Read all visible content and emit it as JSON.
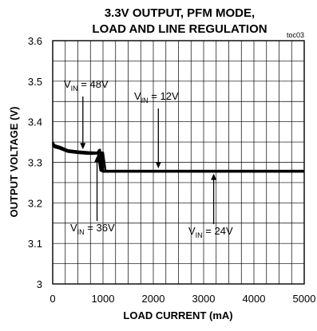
{
  "chart_data": {
    "type": "line",
    "title_line1": "3.3V OUTPUT, PFM MODE,",
    "title_line2": "LOAD AND LINE REGULATION",
    "figure_id": "toc03",
    "xlabel": "LOAD CURRENT (mA)",
    "ylabel": "OUTPUT VOLTAGE (V)",
    "xlim": [
      0,
      5000
    ],
    "ylim": [
      3.0,
      3.6
    ],
    "x_ticks": [
      "0",
      "1000",
      "2000",
      "3000",
      "4000",
      "5000"
    ],
    "y_ticks": [
      "3",
      "3.1",
      "3.2",
      "3.3",
      "3.4",
      "3.5",
      "3.6"
    ],
    "grid": true,
    "x_minor_divisions": 20,
    "y_minor_divisions": 12,
    "series": [
      {
        "x": [
          0,
          40,
          150,
          300,
          500,
          700,
          850,
          950,
          980,
          1000,
          1020,
          1100,
          2000,
          3000,
          4000,
          5000
        ],
        "y": [
          3.348,
          3.342,
          3.338,
          3.33,
          3.327,
          3.325,
          3.324,
          3.323,
          3.322,
          3.278,
          3.278,
          3.278,
          3.278,
          3.278,
          3.278,
          3.278
        ]
      },
      {
        "x": [
          0,
          40,
          150,
          300,
          500,
          700,
          800,
          880,
          920,
          940,
          960,
          1000,
          1100,
          2000,
          3000,
          4000,
          5000
        ],
        "y": [
          3.343,
          3.338,
          3.333,
          3.326,
          3.323,
          3.321,
          3.321,
          3.322,
          3.33,
          3.331,
          3.28,
          3.277,
          3.277,
          3.277,
          3.277,
          3.277,
          3.277
        ]
      },
      {
        "x": [
          0,
          40,
          150,
          300,
          500,
          700,
          850,
          950,
          1000,
          1050,
          1100,
          2000,
          3000,
          4000,
          5000
        ],
        "y": [
          3.35,
          3.34,
          3.336,
          3.328,
          3.325,
          3.323,
          3.323,
          3.324,
          3.324,
          3.279,
          3.279,
          3.279,
          3.279,
          3.279,
          3.279
        ]
      },
      {
        "x": [
          0,
          40,
          150,
          300,
          500,
          700,
          800,
          900,
          950,
          1000,
          1100,
          2000,
          3000,
          4000,
          5000
        ],
        "y": [
          3.345,
          3.337,
          3.334,
          3.327,
          3.324,
          3.322,
          3.322,
          3.322,
          3.28,
          3.278,
          3.278,
          3.278,
          3.278,
          3.278,
          3.278
        ]
      }
    ],
    "annotations": [
      {
        "prefix": "V",
        "sub": "IN",
        "value": " = 48V",
        "arrow_to": [
          600,
          3.326
        ],
        "arrow_dir": "down"
      },
      {
        "prefix": "V",
        "sub": "IN",
        "value": " = 12V",
        "arrow_to": [
          2100,
          3.279
        ],
        "arrow_dir": "down"
      },
      {
        "prefix": "V",
        "sub": "IN",
        "value": " = 36V",
        "arrow_to": [
          850,
          3.322
        ],
        "arrow_dir": "up"
      },
      {
        "prefix": "V",
        "sub": "IN",
        "value": " = 24V",
        "arrow_to": [
          3200,
          3.278
        ],
        "arrow_dir": "up"
      }
    ]
  }
}
